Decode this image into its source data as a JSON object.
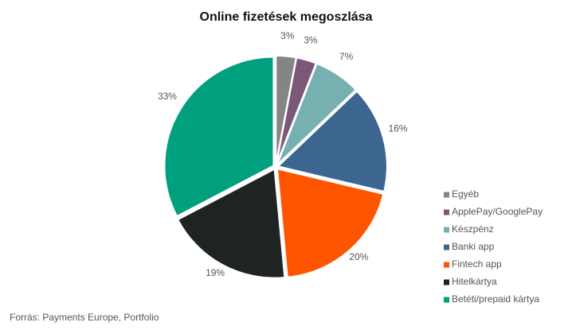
{
  "chart_data": {
    "type": "pie",
    "title": "Online fizetések megoszlása",
    "categories": [
      "Egyéb",
      "ApplePay/GooglePay",
      "Készpénz",
      "Banki app",
      "Fintech app",
      "Hitelkártya",
      "Betéti/prepaid kártya"
    ],
    "values": [
      3,
      3,
      7,
      16,
      20,
      19,
      33
    ],
    "value_labels": [
      "3%",
      "3%",
      "7%",
      "16%",
      "20%",
      "19%",
      "33%"
    ],
    "colors": [
      "#858585",
      "#7b5877",
      "#77b0b1",
      "#3c6690",
      "#ff5500",
      "#1e2422",
      "#00a07e"
    ],
    "source": "Forrás: Payments Europe, Portfolio"
  }
}
